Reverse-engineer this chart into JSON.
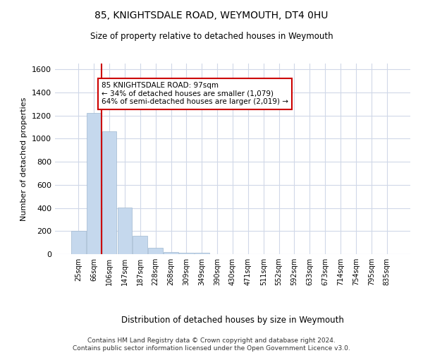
{
  "title1": "85, KNIGHTSDALE ROAD, WEYMOUTH, DT4 0HU",
  "title2": "Size of property relative to detached houses in Weymouth",
  "xlabel": "Distribution of detached houses by size in Weymouth",
  "ylabel": "Number of detached properties",
  "categories": [
    "25sqm",
    "66sqm",
    "106sqm",
    "147sqm",
    "187sqm",
    "228sqm",
    "268sqm",
    "309sqm",
    "349sqm",
    "390sqm",
    "430sqm",
    "471sqm",
    "511sqm",
    "552sqm",
    "592sqm",
    "633sqm",
    "673sqm",
    "714sqm",
    "754sqm",
    "795sqm",
    "835sqm"
  ],
  "values": [
    200,
    1220,
    1065,
    405,
    160,
    55,
    20,
    15,
    10,
    0,
    0,
    0,
    0,
    0,
    0,
    0,
    0,
    0,
    0,
    0,
    0
  ],
  "bar_color": "#c5d8ed",
  "bar_edge_color": "#a0b8d0",
  "highlight_line_color": "#cc0000",
  "annotation_text": "85 KNIGHTSDALE ROAD: 97sqm\n← 34% of detached houses are smaller (1,079)\n64% of semi-detached houses are larger (2,019) →",
  "annotation_box_color": "#ffffff",
  "annotation_box_edge": "#cc0000",
  "ylim": [
    0,
    1650
  ],
  "yticks": [
    0,
    200,
    400,
    600,
    800,
    1000,
    1200,
    1400,
    1600
  ],
  "footer": "Contains HM Land Registry data © Crown copyright and database right 2024.\nContains public sector information licensed under the Open Government Licence v3.0.",
  "background_color": "#ffffff",
  "grid_color": "#d0d8e8"
}
